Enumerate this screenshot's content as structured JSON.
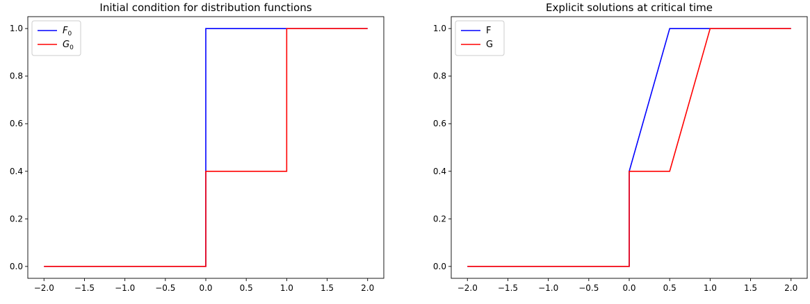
{
  "chart_data": [
    {
      "type": "line",
      "title": "Initial condition for distribution functions",
      "xlabel": "",
      "ylabel": "",
      "xlim": [
        -2.2,
        2.2
      ],
      "ylim": [
        -0.05,
        1.05
      ],
      "xticks": [
        -2.0,
        -1.5,
        -1.0,
        -0.5,
        0.0,
        0.5,
        1.0,
        1.5,
        2.0
      ],
      "xtick_labels": [
        "−2.0",
        "−1.5",
        "−1.0",
        "−0.5",
        "0.0",
        "0.5",
        "1.0",
        "1.5",
        "2.0"
      ],
      "yticks": [
        0.0,
        0.2,
        0.4,
        0.6,
        0.8,
        1.0
      ],
      "ytick_labels": [
        "0.0",
        "0.2",
        "0.4",
        "0.6",
        "0.8",
        "1.0"
      ],
      "grid": false,
      "legend_position": "top-left",
      "series": [
        {
          "name": "F",
          "name_sub": "0",
          "color": "#0000ff",
          "x": [
            -2.0,
            0.0,
            0.0,
            1.0,
            2.0
          ],
          "y": [
            0.0,
            0.0,
            1.0,
            1.0,
            1.0
          ]
        },
        {
          "name": "G",
          "name_sub": "0",
          "color": "#ff0000",
          "x": [
            -2.0,
            0.0,
            0.0,
            1.0,
            1.0,
            2.0
          ],
          "y": [
            0.0,
            0.0,
            0.4,
            0.4,
            1.0,
            1.0
          ]
        }
      ]
    },
    {
      "type": "line",
      "title": "Explicit solutions at critical time",
      "xlabel": "",
      "ylabel": "",
      "xlim": [
        -2.2,
        2.2
      ],
      "ylim": [
        -0.05,
        1.05
      ],
      "xticks": [
        -2.0,
        -1.5,
        -1.0,
        -0.5,
        0.0,
        0.5,
        1.0,
        1.5,
        2.0
      ],
      "xtick_labels": [
        "−2.0",
        "−1.5",
        "−1.0",
        "−0.5",
        "0.0",
        "0.5",
        "1.0",
        "1.5",
        "2.0"
      ],
      "yticks": [
        0.0,
        0.2,
        0.4,
        0.6,
        0.8,
        1.0
      ],
      "ytick_labels": [
        "0.0",
        "0.2",
        "0.4",
        "0.6",
        "0.8",
        "1.0"
      ],
      "grid": false,
      "legend_position": "top-left",
      "series": [
        {
          "name": "F",
          "name_sub": "",
          "color": "#0000ff",
          "x": [
            -2.0,
            0.0,
            0.0,
            0.5,
            1.0,
            2.0
          ],
          "y": [
            0.0,
            0.0,
            0.4,
            1.0,
            1.0,
            1.0
          ]
        },
        {
          "name": "G",
          "name_sub": "",
          "color": "#ff0000",
          "x": [
            -2.0,
            0.0,
            0.0,
            0.5,
            1.0,
            2.0
          ],
          "y": [
            0.0,
            0.0,
            0.4,
            0.4,
            1.0,
            1.0
          ]
        }
      ]
    }
  ]
}
